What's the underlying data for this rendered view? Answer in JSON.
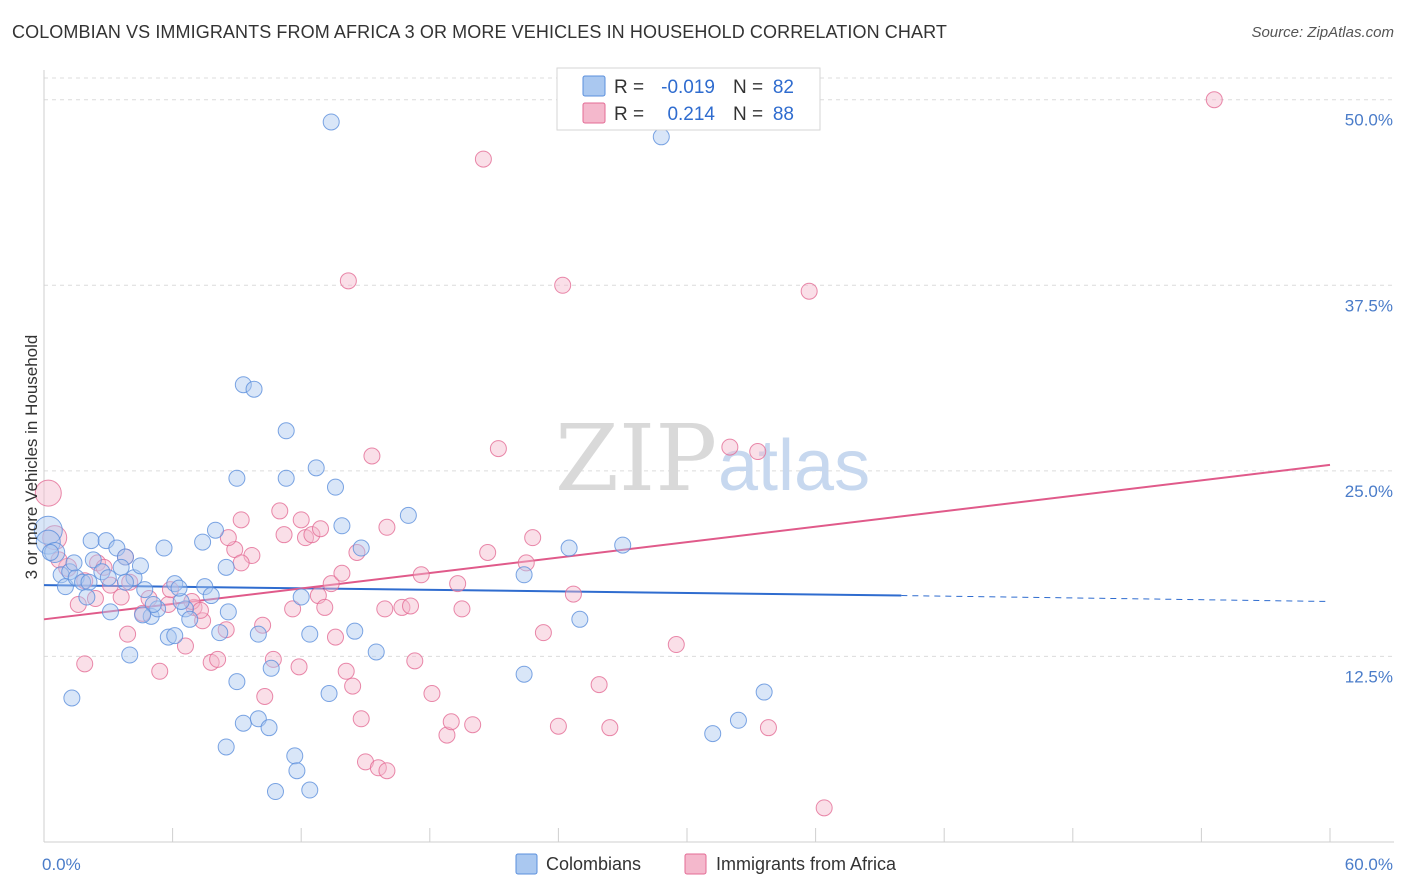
{
  "title": "COLOMBIAN VS IMMIGRANTS FROM AFRICA 3 OR MORE VEHICLES IN HOUSEHOLD CORRELATION CHART",
  "source": "Source: ZipAtlas.com",
  "watermark": {
    "zip": "ZIP",
    "atlas": "atlas"
  },
  "colors": {
    "blue": "#5b8fdc",
    "blue_fill": "#aac8f0",
    "pink": "#e36b95",
    "pink_fill": "#f4b8cc",
    "axis_text": "#4a7cc9"
  },
  "legend": {
    "r_label": "R =",
    "n_label": "N =",
    "rows": [
      {
        "series": "Colombians",
        "r": "-0.019",
        "n": "82"
      },
      {
        "series": "Immigrants from Africa",
        "r": "0.214",
        "n": "88"
      }
    ]
  },
  "chart_data": {
    "type": "scatter",
    "title": "COLOMBIAN VS IMMIGRANTS FROM AFRICA 3 OR MORE VEHICLES IN HOUSEHOLD CORRELATION CHART",
    "xlabel": "",
    "ylabel": "3 or more Vehicles in Household",
    "xlim": [
      0,
      60
    ],
    "ylim": [
      0,
      52
    ],
    "x_tick_labels": [
      "0.0%",
      "60.0%"
    ],
    "y_ticks": [
      12.5,
      25.0,
      37.5,
      50.0
    ],
    "y_tick_labels": [
      "12.5%",
      "25.0%",
      "37.5%",
      "50.0%"
    ],
    "grid": true,
    "legend_position": "top-center",
    "series": [
      {
        "name": "Colombians",
        "color": "#5b8fdc",
        "trend": {
          "x0": 0,
          "y0": 17.3,
          "x1": 40,
          "y1": 16.6,
          "dashed_to_x": 60,
          "dashed_to_y": 16.2
        },
        "points": [
          [
            0.2,
            21.0,
            14
          ],
          [
            0.2,
            20.2,
            12
          ],
          [
            0.5,
            19.5,
            10
          ],
          [
            0.8,
            18.0,
            8
          ],
          [
            1.2,
            18.2,
            8
          ],
          [
            1.0,
            17.2,
            8
          ],
          [
            1.5,
            17.8,
            8
          ],
          [
            1.8,
            17.5,
            8
          ],
          [
            2.1,
            17.5,
            8
          ],
          [
            2.3,
            19.0,
            8
          ],
          [
            2.2,
            20.3,
            8
          ],
          [
            2.9,
            20.3,
            8
          ],
          [
            3.4,
            19.8,
            8
          ],
          [
            3.8,
            19.2,
            8
          ],
          [
            3.6,
            18.5,
            8
          ],
          [
            4.2,
            17.8,
            8
          ],
          [
            4.5,
            18.6,
            8
          ],
          [
            4.7,
            17.0,
            8
          ],
          [
            3.8,
            17.5,
            8
          ],
          [
            2.7,
            18.2,
            8
          ],
          [
            3.1,
            15.5,
            8
          ],
          [
            4.0,
            12.6,
            8
          ],
          [
            5.0,
            15.2,
            8
          ],
          [
            5.3,
            15.7,
            8
          ],
          [
            5.6,
            19.8,
            8
          ],
          [
            6.1,
            17.4,
            8
          ],
          [
            6.6,
            15.7,
            8
          ],
          [
            5.8,
            13.8,
            8
          ],
          [
            6.4,
            16.2,
            8
          ],
          [
            7.5,
            17.2,
            8
          ],
          [
            7.8,
            16.6,
            8
          ],
          [
            8.0,
            21.0,
            8
          ],
          [
            8.2,
            14.1,
            8
          ],
          [
            8.5,
            18.5,
            8
          ],
          [
            8.6,
            15.5,
            8
          ],
          [
            7.4,
            20.2,
            8
          ],
          [
            9.0,
            24.5,
            8
          ],
          [
            9.3,
            30.8,
            8
          ],
          [
            9.8,
            30.5,
            8
          ],
          [
            10.0,
            14.0,
            8
          ],
          [
            10.6,
            11.7,
            8
          ],
          [
            11.3,
            27.7,
            8
          ],
          [
            11.3,
            24.5,
            8
          ],
          [
            12.0,
            16.5,
            8
          ],
          [
            12.4,
            14.0,
            8
          ],
          [
            12.7,
            25.2,
            8
          ],
          [
            13.3,
            10.0,
            8
          ],
          [
            13.6,
            23.9,
            8
          ],
          [
            13.9,
            21.3,
            8
          ],
          [
            14.5,
            14.2,
            8
          ],
          [
            14.8,
            19.8,
            8
          ],
          [
            15.5,
            12.8,
            8
          ],
          [
            17.0,
            22.0,
            8
          ],
          [
            9.0,
            10.8,
            8
          ],
          [
            9.3,
            8.0,
            8
          ],
          [
            10.0,
            8.3,
            8
          ],
          [
            10.5,
            7.7,
            8
          ],
          [
            8.5,
            6.4,
            8
          ],
          [
            11.7,
            5.8,
            8
          ],
          [
            11.8,
            4.8,
            8
          ],
          [
            10.8,
            3.4,
            8
          ],
          [
            12.4,
            3.5,
            8
          ],
          [
            13.4,
            48.5,
            8
          ],
          [
            1.3,
            9.7,
            8
          ],
          [
            6.1,
            13.9,
            8
          ],
          [
            22.4,
            11.3,
            8
          ],
          [
            22.4,
            18.0,
            8
          ],
          [
            24.5,
            19.8,
            8
          ],
          [
            25.0,
            15.0,
            8
          ],
          [
            27.0,
            20.0,
            8
          ],
          [
            31.2,
            7.3,
            8
          ],
          [
            32.4,
            8.2,
            8
          ],
          [
            33.6,
            10.1,
            8
          ],
          [
            28.8,
            47.5,
            8
          ],
          [
            3.0,
            17.8,
            8
          ],
          [
            0.3,
            19.5,
            8
          ],
          [
            5.1,
            16.0,
            8
          ],
          [
            6.8,
            15.0,
            8
          ],
          [
            4.6,
            15.3,
            8
          ],
          [
            2.0,
            16.5,
            8
          ],
          [
            1.4,
            18.8,
            8
          ],
          [
            6.3,
            17.1,
            8
          ]
        ]
      },
      {
        "name": "Immigrants from Africa",
        "color": "#e36b95",
        "trend": {
          "x0": 0,
          "y0": 15.0,
          "x1": 60,
          "y1": 25.4
        },
        "points": [
          [
            0.2,
            23.5,
            13
          ],
          [
            0.5,
            20.5,
            12
          ],
          [
            1.1,
            18.5,
            9
          ],
          [
            1.9,
            17.6,
            8
          ],
          [
            2.5,
            18.8,
            8
          ],
          [
            2.4,
            16.4,
            8
          ],
          [
            3.1,
            17.3,
            8
          ],
          [
            3.6,
            16.5,
            8
          ],
          [
            3.9,
            14.0,
            8
          ],
          [
            4.6,
            15.4,
            8
          ],
          [
            5.4,
            11.5,
            8
          ],
          [
            5.8,
            16.0,
            8
          ],
          [
            6.6,
            13.2,
            8
          ],
          [
            7.0,
            15.8,
            8
          ],
          [
            7.4,
            14.9,
            8
          ],
          [
            7.8,
            12.1,
            8
          ],
          [
            8.1,
            12.3,
            8
          ],
          [
            8.5,
            14.3,
            8
          ],
          [
            8.9,
            19.7,
            8
          ],
          [
            9.2,
            21.7,
            8
          ],
          [
            9.7,
            19.3,
            8
          ],
          [
            10.2,
            14.6,
            8
          ],
          [
            10.3,
            9.8,
            8
          ],
          [
            10.7,
            12.3,
            8
          ],
          [
            11.0,
            22.3,
            8
          ],
          [
            11.2,
            20.7,
            8
          ],
          [
            11.6,
            15.7,
            8
          ],
          [
            12.0,
            21.7,
            8
          ],
          [
            12.2,
            20.5,
            8
          ],
          [
            12.5,
            20.7,
            8
          ],
          [
            12.9,
            21.1,
            8
          ],
          [
            12.8,
            16.6,
            8
          ],
          [
            13.4,
            17.4,
            8
          ],
          [
            13.1,
            15.8,
            8
          ],
          [
            14.1,
            11.5,
            8
          ],
          [
            14.4,
            10.5,
            8
          ],
          [
            14.8,
            8.3,
            8
          ],
          [
            14.6,
            19.5,
            8
          ],
          [
            15.3,
            26.0,
            8
          ],
          [
            15.0,
            5.4,
            8
          ],
          [
            15.6,
            5.0,
            8
          ],
          [
            16.0,
            4.8,
            8
          ],
          [
            16.7,
            15.8,
            8
          ],
          [
            17.1,
            15.9,
            8
          ],
          [
            17.6,
            18.0,
            8
          ],
          [
            18.1,
            10.0,
            8
          ],
          [
            18.8,
            7.2,
            8
          ],
          [
            19.0,
            8.1,
            8
          ],
          [
            19.5,
            15.7,
            8
          ],
          [
            20.0,
            7.9,
            8
          ],
          [
            20.7,
            19.5,
            8
          ],
          [
            21.2,
            26.5,
            8
          ],
          [
            22.5,
            18.8,
            8
          ],
          [
            22.8,
            20.5,
            8
          ],
          [
            23.3,
            14.1,
            8
          ],
          [
            24.0,
            7.8,
            8
          ],
          [
            24.2,
            37.5,
            8
          ],
          [
            24.7,
            16.7,
            8
          ],
          [
            25.9,
            10.6,
            8
          ],
          [
            26.4,
            7.7,
            8
          ],
          [
            29.5,
            13.3,
            8
          ],
          [
            32.0,
            26.6,
            8
          ],
          [
            33.3,
            26.3,
            8
          ],
          [
            33.8,
            7.7,
            8
          ],
          [
            35.7,
            37.1,
            8
          ],
          [
            36.4,
            2.3,
            8
          ],
          [
            54.6,
            50.0,
            8
          ],
          [
            20.5,
            46.0,
            8
          ],
          [
            14.2,
            37.8,
            8
          ],
          [
            1.9,
            12.0,
            8
          ],
          [
            4.0,
            17.5,
            8
          ],
          [
            5.9,
            17.0,
            8
          ],
          [
            6.9,
            16.2,
            8
          ],
          [
            9.2,
            18.8,
            8
          ],
          [
            13.9,
            18.1,
            8
          ],
          [
            16.0,
            21.2,
            8
          ],
          [
            17.3,
            12.2,
            8
          ],
          [
            19.3,
            17.4,
            8
          ],
          [
            2.8,
            18.5,
            8
          ],
          [
            3.8,
            19.2,
            8
          ],
          [
            0.7,
            19.0,
            8
          ],
          [
            1.6,
            16.0,
            8
          ],
          [
            8.6,
            20.5,
            8
          ],
          [
            11.9,
            11.8,
            8
          ],
          [
            13.6,
            13.8,
            8
          ],
          [
            15.9,
            15.7,
            8
          ],
          [
            4.9,
            16.4,
            8
          ],
          [
            7.3,
            15.6,
            8
          ]
        ]
      }
    ]
  }
}
